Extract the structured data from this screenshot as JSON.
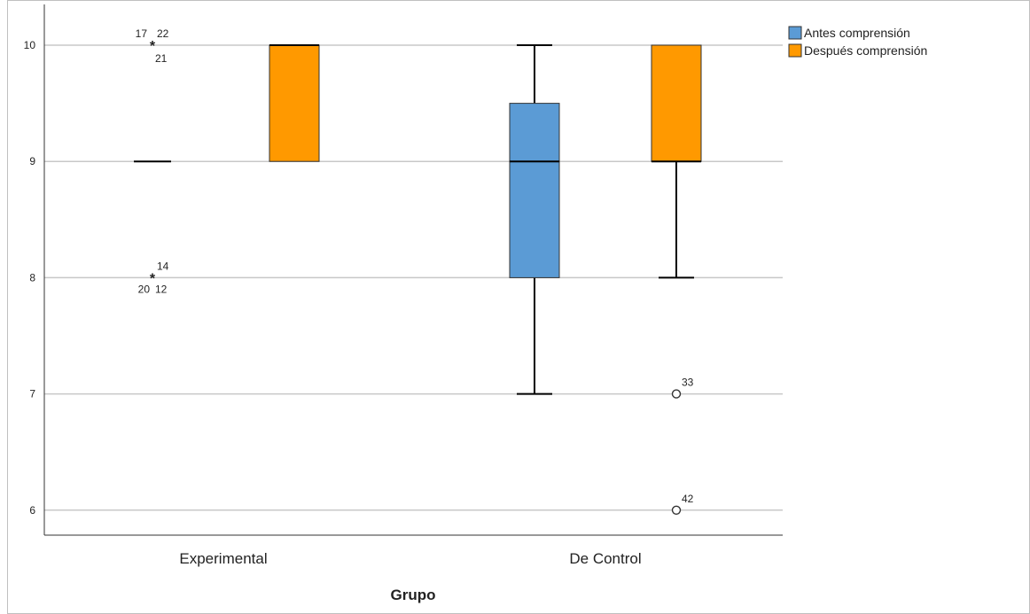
{
  "chart_data": {
    "type": "boxplot",
    "xlabel": "Grupo",
    "ylabel": "",
    "ylim": [
      5.8,
      10.2
    ],
    "yticks": [
      6,
      7,
      8,
      9,
      10
    ],
    "grid": true,
    "legend_position": "top-right",
    "categories": [
      "Experimental",
      "De Control"
    ],
    "series": [
      {
        "name": "Antes comprensión",
        "color": "#5b9bd5",
        "boxes": [
          {
            "category": "Experimental",
            "whisker_low": 9,
            "q1": 9,
            "median": 9,
            "q3": 9,
            "whisker_high": 9,
            "outliers": [
              {
                "value": 10,
                "marker": "star",
                "labels": [
                  "17",
                  "22",
                  "21"
                ]
              },
              {
                "value": 8,
                "marker": "star",
                "labels": [
                  "14",
                  "20",
                  "12"
                ]
              }
            ]
          },
          {
            "category": "De Control",
            "whisker_low": 7,
            "q1": 8,
            "median": 9,
            "q3": 9.5,
            "whisker_high": 10,
            "outliers": []
          }
        ]
      },
      {
        "name": "Después comprensión",
        "color": "#ff9900",
        "boxes": [
          {
            "category": "Experimental",
            "whisker_low": 9,
            "q1": 9,
            "median": 10,
            "q3": 10,
            "whisker_high": 10,
            "outliers": []
          },
          {
            "category": "De Control",
            "whisker_low": 8,
            "q1": 9,
            "median": 9,
            "q3": 10,
            "whisker_high": 10,
            "outliers": [
              {
                "value": 7,
                "marker": "circle",
                "labels": [
                  "33"
                ]
              },
              {
                "value": 6,
                "marker": "circle",
                "labels": [
                  "42"
                ]
              }
            ]
          }
        ]
      }
    ]
  }
}
